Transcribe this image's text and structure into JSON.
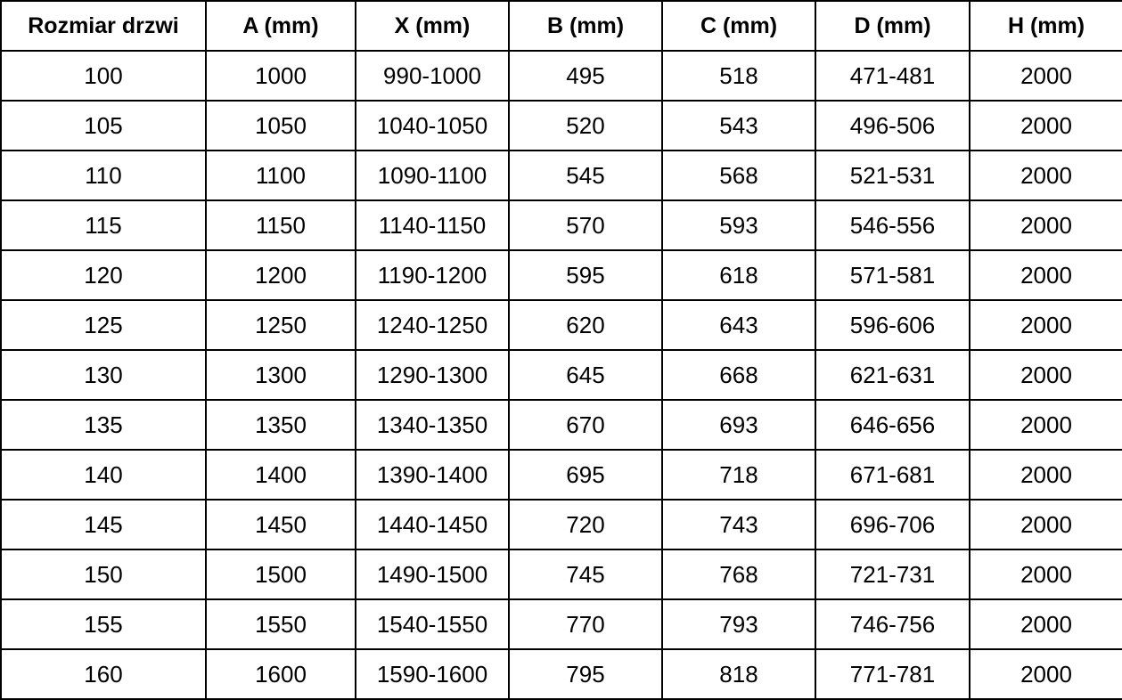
{
  "colors": {
    "background": "#ffffff",
    "border": "#000000",
    "text": "#000000"
  },
  "table": {
    "headers": [
      "Rozmiar drzwi",
      "A (mm)",
      "X (mm)",
      "B (mm)",
      "C (mm)",
      "D (mm)",
      "H (mm)"
    ],
    "rows": [
      [
        "100",
        "1000",
        "990-1000",
        "495",
        "518",
        "471-481",
        "2000"
      ],
      [
        "105",
        "1050",
        "1040-1050",
        "520",
        "543",
        "496-506",
        "2000"
      ],
      [
        "110",
        "1100",
        "1090-1100",
        "545",
        "568",
        "521-531",
        "2000"
      ],
      [
        "115",
        "1150",
        "1140-1150",
        "570",
        "593",
        "546-556",
        "2000"
      ],
      [
        "120",
        "1200",
        "1190-1200",
        "595",
        "618",
        "571-581",
        "2000"
      ],
      [
        "125",
        "1250",
        "1240-1250",
        "620",
        "643",
        "596-606",
        "2000"
      ],
      [
        "130",
        "1300",
        "1290-1300",
        "645",
        "668",
        "621-631",
        "2000"
      ],
      [
        "135",
        "1350",
        "1340-1350",
        "670",
        "693",
        "646-656",
        "2000"
      ],
      [
        "140",
        "1400",
        "1390-1400",
        "695",
        "718",
        "671-681",
        "2000"
      ],
      [
        "145",
        "1450",
        "1440-1450",
        "720",
        "743",
        "696-706",
        "2000"
      ],
      [
        "150",
        "1500",
        "1490-1500",
        "745",
        "768",
        "721-731",
        "2000"
      ],
      [
        "155",
        "1550",
        "1540-1550",
        "770",
        "793",
        "746-756",
        "2000"
      ],
      [
        "160",
        "1600",
        "1590-1600",
        "795",
        "818",
        "771-781",
        "2000"
      ]
    ]
  }
}
